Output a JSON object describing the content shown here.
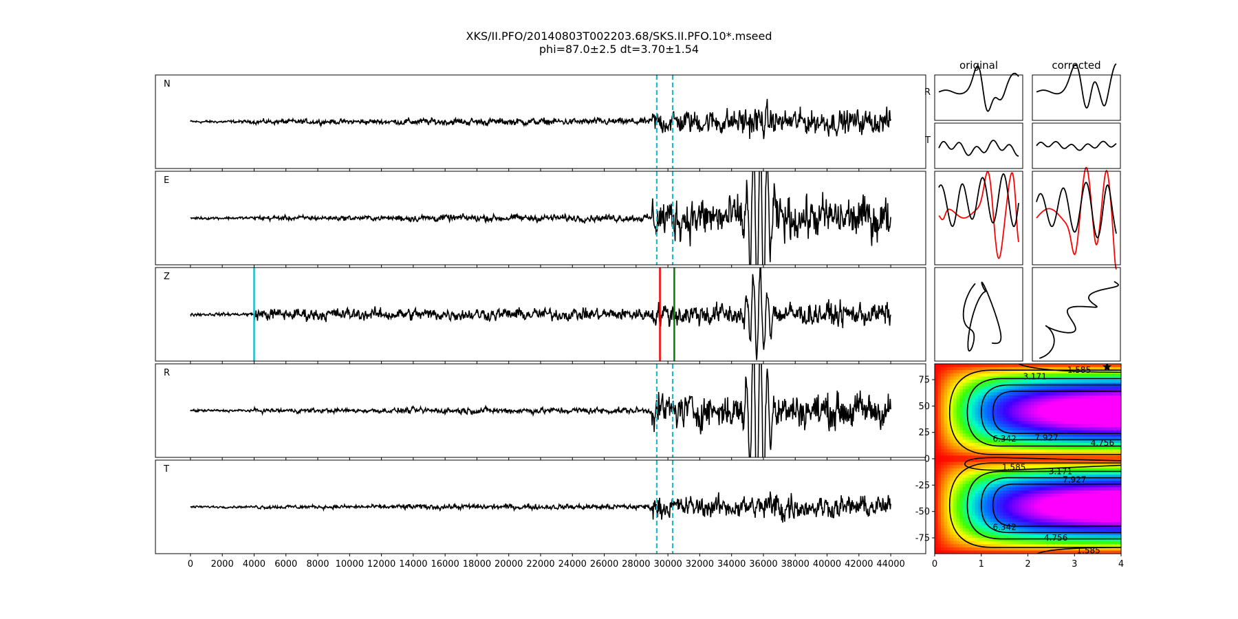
{
  "figure": {
    "title_line1": "XKS/II.PFO/20140803T002203.68/SKS.II.PFO.10*.mseed",
    "title_line2": "phi=87.0±2.5 dt=3.70±1.54"
  },
  "colors": {
    "trace": "#000000",
    "cyan_marker": "#17becf",
    "red_marker": "#ff0000",
    "green_marker": "#008000",
    "radial_overlay": "#ff0000"
  },
  "chart_data": [
    {
      "type": "line",
      "name": "seismogram traces",
      "panels": [
        "N",
        "E",
        "Z",
        "R",
        "T"
      ],
      "x_ticks": [
        0,
        2000,
        4000,
        6000,
        8000,
        10000,
        12000,
        14000,
        16000,
        18000,
        20000,
        22000,
        24000,
        26000,
        28000,
        30000,
        32000,
        34000,
        36000,
        38000,
        40000,
        42000,
        44000
      ],
      "xlim": [
        -2200,
        46200
      ],
      "trace_x_range": [
        0,
        44000
      ],
      "window_dashed": [
        29300,
        30300
      ],
      "z_markers": [
        {
          "x": 4000,
          "color": "cyan"
        },
        {
          "x": 29500,
          "color": "red"
        },
        {
          "x": 30400,
          "color": "green"
        }
      ],
      "grid": false
    },
    {
      "type": "line",
      "name": "particle motion panels",
      "columns": [
        "original",
        "corrected"
      ],
      "rows": [
        "R",
        "T",
        "overlay",
        "particle-motion"
      ]
    },
    {
      "type": "heatmap",
      "name": "error surface",
      "x_ticks": [
        0,
        1,
        2,
        3,
        4
      ],
      "y_ticks": [
        75,
        50,
        25,
        0,
        -25,
        -50,
        -75
      ],
      "xlim": [
        0,
        4
      ],
      "ylim": [
        -90,
        90
      ],
      "contour_labels": [
        {
          "text": "1.585",
          "x": 3.1,
          "y": 84
        },
        {
          "text": "3.171",
          "x": 2.15,
          "y": 78
        },
        {
          "text": "6.342",
          "x": 1.5,
          "y": 19
        },
        {
          "text": "7.927",
          "x": 2.4,
          "y": 20
        },
        {
          "text": "4.756",
          "x": 3.6,
          "y": 15
        },
        {
          "text": "1.585",
          "x": 1.7,
          "y": -8
        },
        {
          "text": "3.171",
          "x": 2.7,
          "y": -12
        },
        {
          "text": "7.927",
          "x": 3.0,
          "y": -20
        },
        {
          "text": "6.342",
          "x": 1.5,
          "y": -65
        },
        {
          "text": "4.756",
          "x": 2.6,
          "y": -75
        },
        {
          "text": "1.585",
          "x": 3.3,
          "y": -87
        }
      ],
      "best_fit": {
        "x": 3.7,
        "y": 87.0
      },
      "colormap": "gist_rainbow"
    }
  ]
}
